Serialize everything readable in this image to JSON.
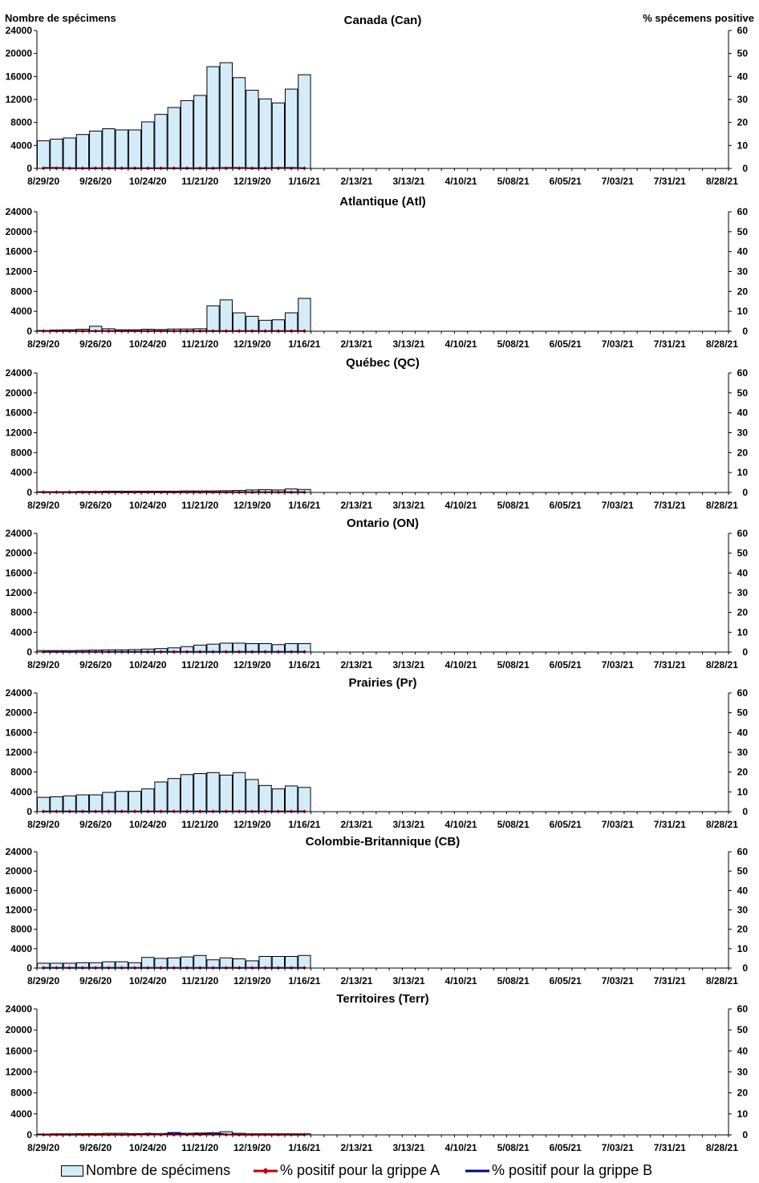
{
  "header": {
    "left_axis_label": "Nombre de spécimens",
    "right_axis_label": "% spécemens positive"
  },
  "colors": {
    "bar_fill": "#d4ecfa",
    "bar_stroke": "#000000",
    "flu_a": "#c00000",
    "flu_b": "#00008b"
  },
  "legend": {
    "specimens": "Nombre de spécimens",
    "flu_a": "% positif pour la grippe A",
    "flu_b": "% positif pour la grippe B"
  },
  "chart_data": [
    {
      "type": "bar",
      "title": "Canada (Can)",
      "x_tick_labels": [
        "8/29/20",
        "9/26/20",
        "10/24/20",
        "11/21/20",
        "12/19/20",
        "1/16/21",
        "2/13/21",
        "3/13/21",
        "4/10/21",
        "5/08/21",
        "6/05/21",
        "7/03/21",
        "7/31/21",
        "8/28/21"
      ],
      "y_left_ticks": [
        0,
        4000,
        8000,
        12000,
        16000,
        20000,
        24000
      ],
      "y_right_ticks": [
        0,
        10,
        20,
        30,
        40,
        50,
        60
      ],
      "ylim_left": [
        0,
        24000
      ],
      "ylim_right": [
        0,
        60
      ],
      "grid": false,
      "specimens": [
        4800,
        5100,
        5300,
        5900,
        6500,
        6900,
        6700,
        6700,
        8100,
        9400,
        10600,
        11800,
        12700,
        17700,
        18400,
        15800,
        13600,
        12100,
        11400,
        13800,
        16300
      ],
      "flu_a_pct": [
        0.1,
        0.1,
        0.1,
        0.1,
        0.1,
        0.1,
        0.1,
        0.1,
        0.1,
        0.1,
        0.1,
        0.1,
        0.1,
        0.1,
        0.1,
        0.1,
        0.1,
        0.1,
        0.1,
        0.1,
        0.1
      ],
      "flu_b_pct": [
        0.2,
        0.2,
        0.1,
        0.1,
        0.1,
        0.1,
        0.1,
        0.1,
        0.1,
        0.1,
        0.1,
        0.1,
        0.1,
        0.1,
        0.2,
        0.2,
        0.1,
        0.1,
        0.2,
        0.2,
        0.1
      ]
    },
    {
      "type": "bar",
      "title": "Atlantique (Atl)",
      "x_tick_labels": [
        "8/29/20",
        "9/26/20",
        "10/24/20",
        "11/21/20",
        "12/19/20",
        "1/16/21",
        "2/13/21",
        "3/13/21",
        "4/10/21",
        "5/08/21",
        "6/05/21",
        "7/03/21",
        "7/31/21",
        "8/28/21"
      ],
      "y_left_ticks": [
        0,
        4000,
        8000,
        12000,
        16000,
        20000,
        24000
      ],
      "y_right_ticks": [
        0,
        10,
        20,
        30,
        40,
        50,
        60
      ],
      "ylim_left": [
        0,
        24000
      ],
      "ylim_right": [
        0,
        60
      ],
      "grid": false,
      "specimens": [
        150,
        250,
        300,
        400,
        1000,
        500,
        300,
        300,
        400,
        350,
        450,
        450,
        500,
        5100,
        6300,
        3700,
        3000,
        2200,
        2300,
        3700,
        6600
      ],
      "flu_a_pct": [
        0.1,
        0.1,
        0.1,
        0.1,
        0.1,
        0.1,
        0.1,
        0.1,
        0.1,
        0.1,
        0.1,
        0.1,
        0.1,
        0.1,
        0.1,
        0.1,
        0.1,
        0.1,
        0.1,
        0.1,
        0.1
      ],
      "flu_b_pct": [
        0.1,
        0.1,
        0.1,
        0.1,
        0.1,
        0.1,
        0.1,
        0.1,
        0.1,
        0.1,
        0.1,
        0.1,
        0.1,
        0.1,
        0.1,
        0.1,
        0.1,
        0.1,
        0.1,
        0.1,
        0.1
      ]
    },
    {
      "type": "bar",
      "title": "Québec (QC)",
      "x_tick_labels": [
        "8/29/20",
        "9/26/20",
        "10/24/20",
        "11/21/20",
        "12/19/20",
        "1/16/21",
        "2/13/21",
        "3/13/21",
        "4/10/21",
        "5/08/21",
        "6/05/21",
        "7/03/21",
        "7/31/21",
        "8/28/21"
      ],
      "y_left_ticks": [
        0,
        4000,
        8000,
        12000,
        16000,
        20000,
        24000
      ],
      "y_right_ticks": [
        0,
        10,
        20,
        30,
        40,
        50,
        60
      ],
      "ylim_left": [
        0,
        24000
      ],
      "ylim_right": [
        0,
        60
      ],
      "grid": false,
      "specimens": [
        150,
        150,
        150,
        200,
        200,
        250,
        250,
        250,
        250,
        250,
        250,
        300,
        300,
        300,
        350,
        400,
        500,
        550,
        500,
        700,
        600
      ],
      "flu_a_pct": [
        0.1,
        0.1,
        0.1,
        0.1,
        0.1,
        0.1,
        0.1,
        0.1,
        0.1,
        0.1,
        0.1,
        0.1,
        0.1,
        0.1,
        0.1,
        0.1,
        0.1,
        0.1,
        0.1,
        0.1,
        0.1
      ],
      "flu_b_pct": [
        0.1,
        0.1,
        0.1,
        0.1,
        0.1,
        0.1,
        0.1,
        0.1,
        0.1,
        0.1,
        0.1,
        0.1,
        0.1,
        0.1,
        0.1,
        0.1,
        0.1,
        0.1,
        0.1,
        0.1,
        0.1
      ]
    },
    {
      "type": "bar",
      "title": "Ontario (ON)",
      "x_tick_labels": [
        "8/29/20",
        "9/26/20",
        "10/24/20",
        "11/21/20",
        "12/19/20",
        "1/16/21",
        "2/13/21",
        "3/13/21",
        "4/10/21",
        "5/08/21",
        "6/05/21",
        "7/03/21",
        "7/31/21",
        "8/28/21"
      ],
      "y_left_ticks": [
        0,
        4000,
        8000,
        12000,
        16000,
        20000,
        24000
      ],
      "y_right_ticks": [
        0,
        10,
        20,
        30,
        40,
        50,
        60
      ],
      "ylim_left": [
        0,
        24000
      ],
      "ylim_right": [
        0,
        60
      ],
      "grid": false,
      "specimens": [
        300,
        300,
        300,
        350,
        400,
        450,
        450,
        500,
        600,
        700,
        850,
        1100,
        1400,
        1600,
        1800,
        1800,
        1700,
        1700,
        1500,
        1700,
        1700
      ],
      "flu_a_pct": [
        0.1,
        0.1,
        0.1,
        0.1,
        0.1,
        0.1,
        0.1,
        0.1,
        0.1,
        0.1,
        0.1,
        0.1,
        0.1,
        0.1,
        0.1,
        0.1,
        0.1,
        0.1,
        0.1,
        0.1,
        0.1
      ],
      "flu_b_pct": [
        0.1,
        0.1,
        0.1,
        0.1,
        0.1,
        0.1,
        0.1,
        0.1,
        0.1,
        0.1,
        0.1,
        0.1,
        0.1,
        0.1,
        0.1,
        0.1,
        0.1,
        0.1,
        0.1,
        0.1,
        0.1
      ]
    },
    {
      "type": "bar",
      "title": "Prairies (Pr)",
      "x_tick_labels": [
        "8/29/20",
        "9/26/20",
        "10/24/20",
        "11/21/20",
        "12/19/20",
        "1/16/21",
        "2/13/21",
        "3/13/21",
        "4/10/21",
        "5/08/21",
        "6/05/21",
        "7/03/21",
        "7/31/21",
        "8/28/21"
      ],
      "y_left_ticks": [
        0,
        4000,
        8000,
        12000,
        16000,
        20000,
        24000
      ],
      "y_right_ticks": [
        0,
        10,
        20,
        30,
        40,
        50,
        60
      ],
      "ylim_left": [
        0,
        24000
      ],
      "ylim_right": [
        0,
        60
      ],
      "grid": false,
      "specimens": [
        2900,
        3000,
        3200,
        3400,
        3400,
        3900,
        4100,
        4100,
        4600,
        6000,
        6700,
        7500,
        7700,
        7900,
        7400,
        7900,
        6500,
        5300,
        4600,
        5200,
        4900
      ],
      "flu_a_pct": [
        0.1,
        0.1,
        0.1,
        0.1,
        0.1,
        0.1,
        0.1,
        0.1,
        0.1,
        0.1,
        0.1,
        0.1,
        0.1,
        0.1,
        0.1,
        0.1,
        0.1,
        0.1,
        0.1,
        0.1,
        0.1
      ],
      "flu_b_pct": [
        0.1,
        0.1,
        0.1,
        0.1,
        0.1,
        0.1,
        0.1,
        0.1,
        0.1,
        0.1,
        0.1,
        0.1,
        0.1,
        0.1,
        0.1,
        0.1,
        0.1,
        0.1,
        0.1,
        0.1,
        0.1
      ]
    },
    {
      "type": "bar",
      "title": "Colombie-Britannique (CB)",
      "x_tick_labels": [
        "8/29/20",
        "9/26/20",
        "10/24/20",
        "11/21/20",
        "12/19/20",
        "1/16/21",
        "2/13/21",
        "3/13/21",
        "4/10/21",
        "5/08/21",
        "6/05/21",
        "7/03/21",
        "7/31/21",
        "8/28/21"
      ],
      "y_left_ticks": [
        0,
        4000,
        8000,
        12000,
        16000,
        20000,
        24000
      ],
      "y_right_ticks": [
        0,
        10,
        20,
        30,
        40,
        50,
        60
      ],
      "ylim_left": [
        0,
        24000
      ],
      "ylim_right": [
        0,
        60
      ],
      "grid": false,
      "specimens": [
        1000,
        1000,
        1000,
        1100,
        1100,
        1300,
        1300,
        1100,
        2200,
        2000,
        2100,
        2300,
        2600,
        1700,
        2100,
        1900,
        1500,
        2400,
        2400,
        2400,
        2600
      ],
      "flu_a_pct": [
        0.1,
        0.1,
        0.1,
        0.1,
        0.1,
        0.1,
        0.1,
        0.1,
        0.1,
        0.1,
        0.1,
        0.1,
        0.1,
        0.1,
        0.1,
        0.1,
        0.1,
        0.1,
        0.1,
        0.1,
        0.1
      ],
      "flu_b_pct": [
        0.1,
        0.1,
        0.1,
        0.1,
        0.1,
        0.1,
        0.1,
        0.1,
        0.1,
        0.1,
        0.1,
        0.1,
        0.1,
        0.1,
        0.1,
        0.1,
        0.1,
        0.1,
        0.1,
        0.1,
        0.1
      ]
    },
    {
      "type": "bar",
      "title": "Territoires (Terr)",
      "x_tick_labels": [
        "8/29/20",
        "9/26/20",
        "10/24/20",
        "11/21/20",
        "12/19/20",
        "1/16/21",
        "2/13/21",
        "3/13/21",
        "4/10/21",
        "5/08/21",
        "6/05/21",
        "7/03/21",
        "7/31/21",
        "8/28/21"
      ],
      "y_left_ticks": [
        0,
        4000,
        8000,
        12000,
        16000,
        20000,
        24000
      ],
      "y_right_ticks": [
        0,
        10,
        20,
        30,
        40,
        50,
        60
      ],
      "ylim_left": [
        0,
        24000
      ],
      "ylim_right": [
        0,
        60
      ],
      "grid": false,
      "specimens": [
        150,
        200,
        200,
        250,
        250,
        300,
        300,
        250,
        200,
        250,
        450,
        300,
        350,
        400,
        600,
        300,
        200,
        200,
        200,
        200,
        200
      ],
      "flu_a_pct": [
        0.1,
        0.1,
        0.1,
        0.1,
        0.1,
        0.1,
        0.1,
        0.1,
        0.1,
        0.1,
        0.1,
        0.1,
        0.1,
        0.1,
        0.1,
        0.1,
        0.1,
        0.1,
        0.1,
        0.1,
        0.1
      ],
      "flu_b_pct": [
        0.1,
        0.1,
        0.1,
        0.1,
        0.1,
        0.1,
        0.1,
        0.1,
        0.6,
        0.3,
        0.8,
        0.5,
        0.4,
        0.9,
        0.2,
        0.1,
        0.1,
        0.1,
        0.1,
        0.1,
        0.1
      ]
    }
  ]
}
